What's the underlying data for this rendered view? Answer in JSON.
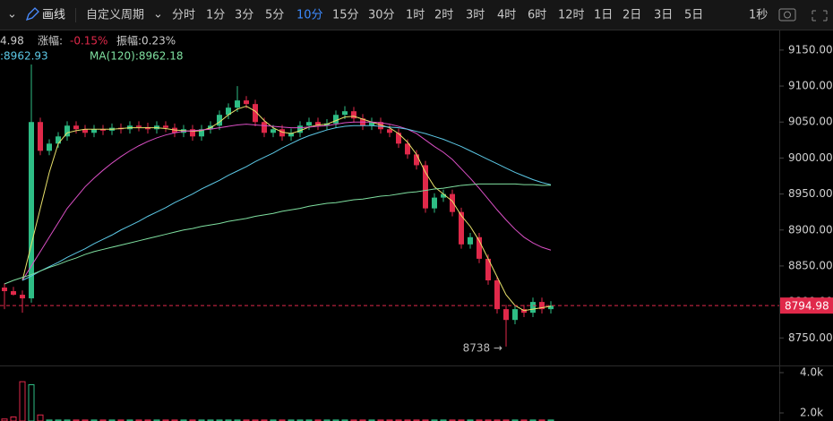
{
  "toolbar": {
    "draw": "画线",
    "custom_period": "自定义周期",
    "periods": [
      "分时",
      "1分",
      "3分",
      "5分",
      "10分",
      "15分",
      "30分",
      "1时",
      "2时",
      "3时",
      "4时",
      "6时",
      "12时",
      "1日",
      "2日",
      "3日",
      "5日"
    ],
    "active_index": 4,
    "interval": "1秒"
  },
  "chart_data": {
    "type": "candlestick",
    "info": {
      "last": "4.98",
      "change_label": "涨幅:",
      "change": "-0.15%",
      "amplitude": "振幅:0.23%",
      "ma_a": ":8962.93",
      "ma_120": "MA(120):8962.18"
    },
    "low_annotation": "8738 →",
    "up_color": "#2ebd85",
    "down_color": "#e0294a",
    "open": [
      8820,
      8815,
      8810,
      8805,
      9050,
      9010,
      9020,
      9030,
      9045,
      9040,
      9035,
      9040,
      9038,
      9042,
      9040,
      9045,
      9043,
      9040,
      9045,
      9042,
      9035,
      9040,
      9030,
      9040,
      9045,
      9060,
      9070,
      9080,
      9075,
      9050,
      9035,
      9040,
      9030,
      9035,
      9045,
      9050,
      9045,
      9048,
      9060,
      9065,
      9055,
      9045,
      9050,
      9040,
      9035,
      9020,
      9005,
      8990,
      8930,
      8945,
      8950,
      8925,
      8880,
      8890,
      8860,
      8830,
      8790,
      8775,
      8790,
      8785,
      8800,
      8790
    ],
    "high": [
      8826,
      8821,
      8816,
      9130,
      9056,
      9026,
      9036,
      9051,
      9051,
      9046,
      9046,
      9046,
      9048,
      9048,
      9051,
      9051,
      9049,
      9051,
      9051,
      9048,
      9046,
      9046,
      9046,
      9051,
      9066,
      9076,
      9100,
      9086,
      9081,
      9056,
      9046,
      9046,
      9041,
      9051,
      9056,
      9056,
      9054,
      9066,
      9072,
      9071,
      9061,
      9056,
      9056,
      9046,
      9041,
      9026,
      9011,
      8996,
      8951,
      8956,
      8956,
      8931,
      8896,
      8896,
      8866,
      8836,
      8796,
      8796,
      8796,
      8806,
      8806,
      8801
    ],
    "low": [
      8790,
      8809,
      8785,
      8799,
      9004,
      9004,
      9014,
      9024,
      9034,
      9029,
      9029,
      9032,
      9032,
      9034,
      9034,
      9037,
      9034,
      9034,
      9036,
      9029,
      9029,
      9024,
      9024,
      9034,
      9039,
      9054,
      9064,
      9069,
      9044,
      9029,
      9029,
      9024,
      9024,
      9029,
      9039,
      9039,
      9039,
      9042,
      9054,
      9049,
      9039,
      9039,
      9034,
      9029,
      9014,
      8999,
      8984,
      8924,
      8924,
      8939,
      8919,
      8874,
      8874,
      8854,
      8824,
      8784,
      8738,
      8769,
      8779,
      8779,
      8784,
      8784
    ],
    "close": [
      8815,
      8810,
      8805,
      9050,
      9010,
      9020,
      9030,
      9045,
      9040,
      9035,
      9040,
      9038,
      9042,
      9040,
      9045,
      9043,
      9040,
      9045,
      9042,
      9035,
      9040,
      9030,
      9040,
      9045,
      9060,
      9070,
      9080,
      9075,
      9050,
      9035,
      9040,
      9030,
      9035,
      9045,
      9050,
      9045,
      9048,
      9060,
      9065,
      9055,
      9045,
      9050,
      9040,
      9035,
      9020,
      9005,
      8990,
      8930,
      8945,
      8950,
      8925,
      8880,
      8890,
      8860,
      8830,
      8790,
      8775,
      8790,
      8785,
      8800,
      8790,
      8794.98
    ],
    "series": [
      {
        "color": "#e8e06a",
        "values": [
          null,
          null,
          8830,
          8880,
          8930,
          8980,
          9020,
          9035,
          9038,
          9040,
          9040,
          9040,
          9040,
          9041,
          9042,
          9042,
          9042,
          9042,
          9041,
          9039,
          9038,
          9037,
          9038,
          9042,
          9050,
          9060,
          9068,
          9072,
          9065,
          9052,
          9042,
          9036,
          9034,
          9038,
          9043,
          9046,
          9047,
          9052,
          9057,
          9058,
          9054,
          9050,
          9046,
          9042,
          9034,
          9022,
          9005,
          8980,
          8960,
          8950,
          8940,
          8920,
          8905,
          8885,
          8860,
          8835,
          8810,
          8795,
          8788,
          8790,
          8792,
          8794
        ]
      },
      {
        "color": "#d94fc4",
        "values": [
          null,
          null,
          8830,
          8850,
          8870,
          8890,
          8910,
          8930,
          8945,
          8960,
          8972,
          8983,
          8993,
          9002,
          9010,
          9017,
          9023,
          9028,
          9032,
          9035,
          9037,
          9038,
          9039,
          9040,
          9042,
          9044,
          9046,
          9047,
          9046,
          9045,
          9044,
          9043,
          9042,
          9042,
          9043,
          9044,
          9045,
          9047,
          9049,
          9050,
          9050,
          9050,
          9049,
          9047,
          9044,
          9040,
          9034,
          9025,
          9016,
          9008,
          8998,
          8985,
          8972,
          8958,
          8943,
          8928,
          8914,
          8901,
          8890,
          8882,
          8876,
          8872
        ]
      },
      {
        "color": "#5cc8e6",
        "values": [
          null,
          null,
          8830,
          8836,
          8843,
          8849,
          8855,
          8862,
          8868,
          8874,
          8881,
          8887,
          8893,
          8900,
          8906,
          8912,
          8919,
          8925,
          8931,
          8938,
          8944,
          8950,
          8957,
          8963,
          8969,
          8976,
          8982,
          8988,
          8995,
          9001,
          9007,
          9014,
          9020,
          9026,
          9031,
          9035,
          9039,
          9042,
          9044,
          9045,
          9045,
          9045,
          9044,
          9043,
          9042,
          9040,
          9037,
          9034,
          9030,
          9026,
          9021,
          9016,
          9010,
          9004,
          8998,
          8992,
          8986,
          8980,
          8975,
          8970,
          8966,
          8962.93
        ]
      },
      {
        "color": "#7fe0a0",
        "values": [
          8825,
          8830,
          8834,
          8838,
          8843,
          8848,
          8852,
          8857,
          8861,
          8866,
          8870,
          8873,
          8876,
          8879,
          8882,
          8885,
          8888,
          8891,
          8894,
          8897,
          8900,
          8902,
          8905,
          8907,
          8909,
          8912,
          8914,
          8916,
          8919,
          8921,
          8923,
          8926,
          8928,
          8930,
          8933,
          8935,
          8937,
          8938,
          8940,
          8942,
          8943,
          8945,
          8947,
          8948,
          8950,
          8952,
          8953,
          8955,
          8957,
          8958,
          8960,
          8962,
          8963,
          8964,
          8964,
          8964,
          8964,
          8964,
          8963,
          8963,
          8962,
          8962.18
        ]
      }
    ],
    "ylim": [
      8713,
      9176
    ],
    "yticks": [
      {
        "value": 8750,
        "label": "8750.00"
      },
      {
        "value": 8800,
        "label": "8800.00"
      },
      {
        "value": 8850,
        "label": "8850.00"
      },
      {
        "value": 8900,
        "label": "8900.00"
      },
      {
        "value": 8950,
        "label": "8950.00"
      },
      {
        "value": 9000,
        "label": "9000.00"
      },
      {
        "value": 9050,
        "label": "9050.00"
      },
      {
        "value": 9100,
        "label": "9100.00"
      },
      {
        "value": 9150,
        "label": "9150.00"
      }
    ],
    "volume": [
      1700,
      1800,
      3550,
      3400,
      1900,
      1650,
      1650,
      1650,
      1650,
      1650,
      1650,
      1650,
      1650,
      1650,
      1650,
      1650,
      1650,
      1650,
      1650,
      1650,
      1650,
      1650,
      1650,
      1650,
      1650,
      1650,
      1650,
      1650,
      1650,
      1650,
      1650,
      1650,
      1650,
      1650,
      1650,
      1650,
      1650,
      1650,
      1650,
      1650,
      1650,
      1650,
      1650,
      1650,
      1650,
      1650,
      1650,
      1650,
      1650,
      1650,
      1650,
      1650,
      1650,
      1650,
      1650,
      1650,
      1650,
      1650,
      1650,
      1650,
      1650,
      1650
    ],
    "y2lim": [
      1600,
      4356
    ],
    "y2ticks": [
      {
        "value": 4000,
        "label": "4.0k"
      },
      {
        "value": 2000,
        "label": "2.0k"
      }
    ]
  }
}
